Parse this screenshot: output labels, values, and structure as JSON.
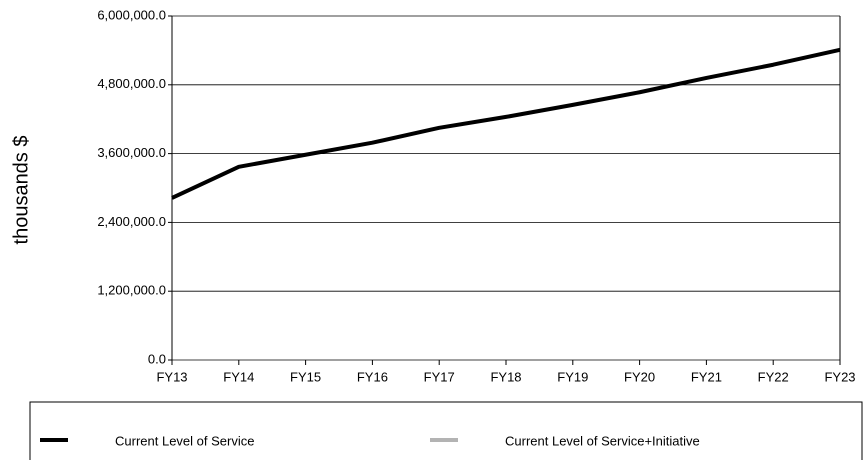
{
  "chart_data": {
    "type": "line",
    "y_label": "thousands $",
    "categories": [
      "FY13",
      "FY14",
      "FY15",
      "FY16",
      "FY17",
      "FY18",
      "FY19",
      "FY20",
      "FY21",
      "FY22",
      "FY23"
    ],
    "series": [
      {
        "name": "Current Level of Service",
        "color": "#000000",
        "values": [
          2826000,
          3370000,
          3580000,
          3790000,
          4050000,
          4240000,
          4450000,
          4670000,
          4920000,
          5150000,
          5410000
        ]
      },
      {
        "name": "Current Level of Service+Initiative",
        "color": "#b3b3b3",
        "values": [
          null,
          null,
          null,
          null,
          null,
          null,
          null,
          null,
          null,
          null,
          null
        ]
      }
    ],
    "ylim": [
      0,
      6000000
    ],
    "yticks": [
      {
        "value": 0,
        "label": "0.0"
      },
      {
        "value": 1200000,
        "label": "1,200,000.0"
      },
      {
        "value": 2400000,
        "label": "2,400,000.0"
      },
      {
        "value": 3600000,
        "label": "3,600,000.0"
      },
      {
        "value": 4800000,
        "label": "4,800,000.0"
      },
      {
        "value": 6000000,
        "label": "6,000,000.0"
      }
    ],
    "grid": true
  }
}
